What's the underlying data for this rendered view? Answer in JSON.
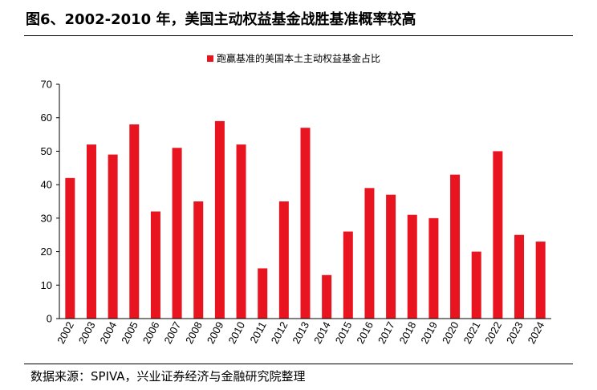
{
  "figure": {
    "title": "图6、2002-2010 年，美国主动权益基金战胜基准概率较高",
    "source": "数据来源：SPIVA，兴业证券经济与金融研究院整理"
  },
  "colors": {
    "bar": "#e8141f",
    "axis": "#000000"
  },
  "chart_data": {
    "type": "bar",
    "title": "",
    "xlabel": "",
    "ylabel": "",
    "ylim": [
      0,
      70
    ],
    "yticks": [
      0,
      10,
      20,
      30,
      40,
      50,
      60,
      70
    ],
    "grid": false,
    "legend": {
      "position": "top-center",
      "entries": [
        "跑赢基准的美国本土主动权益基金占比"
      ]
    },
    "categories": [
      "2002",
      "2003",
      "2004",
      "2005",
      "2006",
      "2007",
      "2008",
      "2009",
      "2010",
      "2011",
      "2012",
      "2013",
      "2014",
      "2015",
      "2016",
      "2017",
      "2018",
      "2019",
      "2020",
      "2021",
      "2022",
      "2023",
      "2024"
    ],
    "series": [
      {
        "name": "跑赢基准的美国本土主动权益基金占比",
        "values": [
          42,
          52,
          49,
          58,
          32,
          51,
          35,
          59,
          52,
          15,
          35,
          57,
          13,
          26,
          39,
          37,
          31,
          30,
          43,
          20,
          50,
          25,
          23
        ]
      }
    ]
  }
}
